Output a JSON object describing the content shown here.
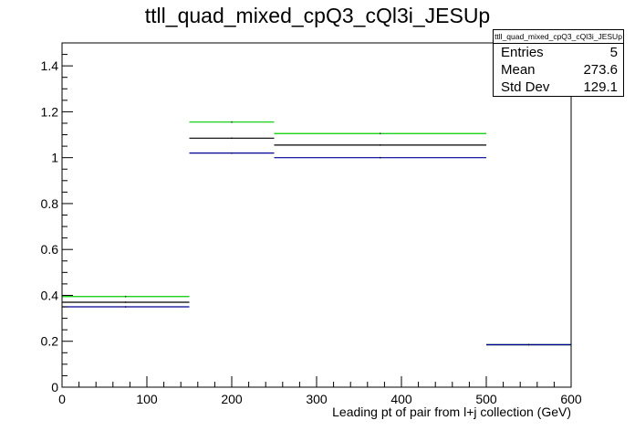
{
  "title": "ttll_quad_mixed_cpQ3_cQl3i_JESUp",
  "stats": {
    "name": "ttll_quad_mixed_cpQ3_cQl3i_JESUp",
    "rows": [
      {
        "label": "Entries",
        "value": "5"
      },
      {
        "label": "Mean",
        "value": "273.6"
      },
      {
        "label": "Std Dev",
        "value": "129.1"
      }
    ]
  },
  "chart_data": {
    "type": "histogram-step",
    "title": "ttll_quad_mixed_cpQ3_cQl3i_JESUp",
    "xlabel": "Leading pt of pair from l+j collection (GeV)",
    "ylabel": "",
    "xlim": [
      0,
      600
    ],
    "ylim": [
      0,
      1.5
    ],
    "x_ticks": [
      "0",
      "100",
      "200",
      "300",
      "400",
      "500",
      "600"
    ],
    "y_ticks": [
      "0",
      "0.2",
      "0.4",
      "0.6",
      "0.8",
      "1",
      "1.2",
      "1.4"
    ],
    "bins": [
      [
        0,
        150
      ],
      [
        150,
        250
      ],
      [
        250,
        500
      ],
      [
        500,
        600
      ]
    ],
    "series": [
      {
        "color": "#00cc00",
        "values": [
          0.395,
          1.155,
          1.105,
          0.185
        ]
      },
      {
        "color": "#000000",
        "values": [
          0.37,
          1.085,
          1.055,
          0.185
        ]
      },
      {
        "color": "#000099",
        "values": [
          0.35,
          1.02,
          1.0,
          0.185
        ]
      }
    ]
  }
}
